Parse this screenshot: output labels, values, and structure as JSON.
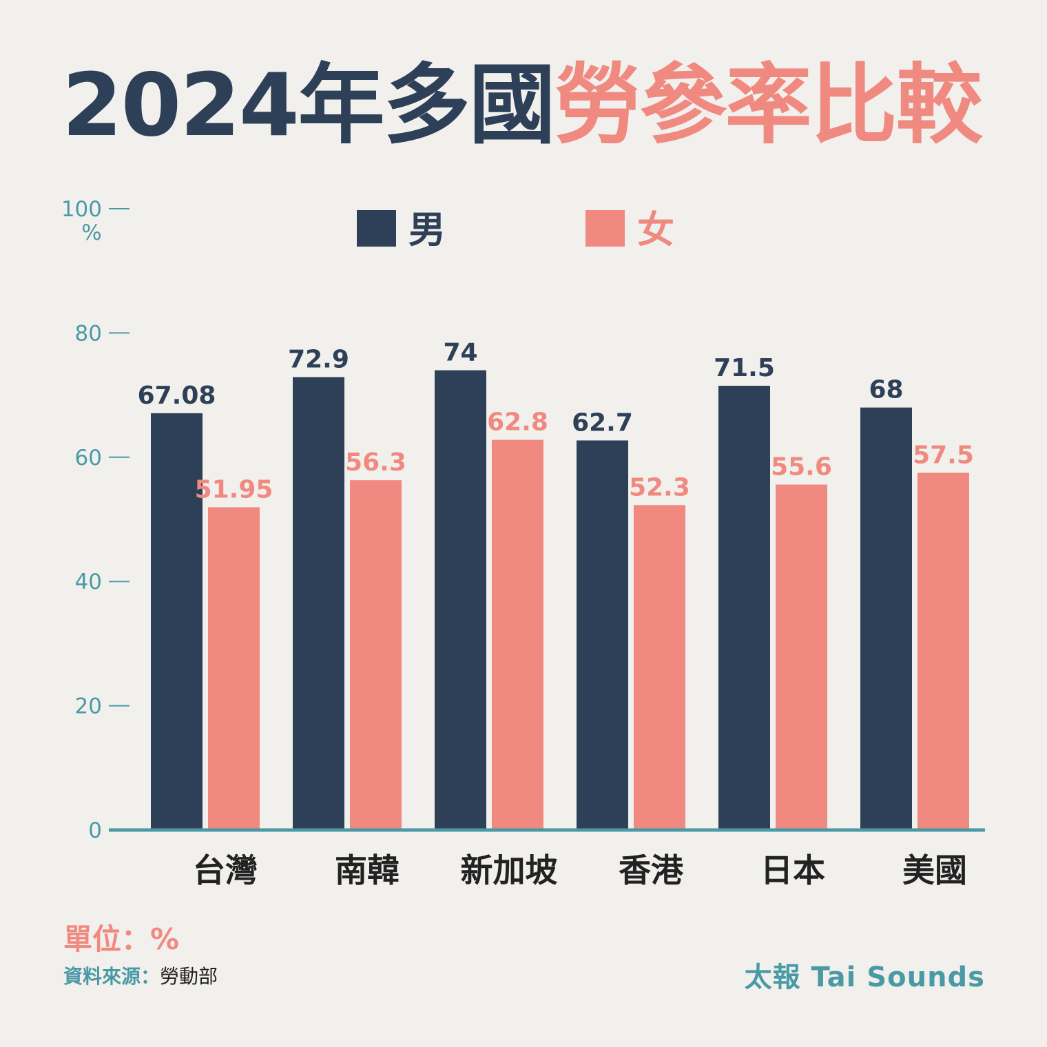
{
  "title": {
    "part1": "2024年多國",
    "part2": "勞參率比較"
  },
  "colors": {
    "background": "#f2f0ed",
    "male": "#2e4057",
    "female": "#f08a80",
    "axis": "#4a9aa5"
  },
  "chart_data": {
    "type": "bar",
    "title": "2024年多國勞參率比較",
    "ylabel": "%",
    "ylim": [
      0,
      100
    ],
    "yticks": [
      "0",
      "20",
      "40",
      "60",
      "80",
      "100"
    ],
    "categories": [
      "台灣",
      "南韓",
      "新加坡",
      "香港",
      "日本",
      "美國"
    ],
    "series": [
      {
        "name": "男",
        "values": [
          67.08,
          72.9,
          74,
          62.7,
          71.5,
          68
        ],
        "labels": [
          "67.08",
          "72.9",
          "74",
          "62.7",
          "71.5",
          "68"
        ]
      },
      {
        "name": "女",
        "values": [
          51.95,
          56.3,
          62.8,
          52.3,
          55.6,
          57.5
        ],
        "labels": [
          "51.95",
          "56.3",
          "62.8",
          "52.3",
          "55.6",
          "57.5"
        ]
      }
    ],
    "legend_position": "top-center",
    "grid": false
  },
  "footer": {
    "unit": "單位：%",
    "source_label": "資料來源：",
    "source_value": "勞動部",
    "brand": "太報 Tai Sounds"
  }
}
